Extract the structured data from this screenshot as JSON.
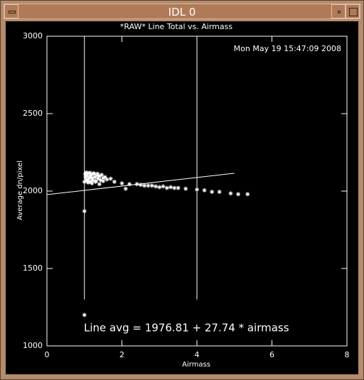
{
  "window": {
    "title": "IDL 0"
  },
  "chart_data": {
    "type": "scatter",
    "title": "*RAW* Line Total vs. Airmass",
    "timestamp": "Mon May 19 15:47:09 2008",
    "annotation": "Line avg = 1976.81 + 27.74 * airmass",
    "x_label": "Airmass",
    "y_label": "Average dn/pixel",
    "xlim": [
      0,
      8
    ],
    "xticks": [
      0,
      2,
      4,
      6,
      8
    ],
    "ylim": [
      1000,
      3000
    ],
    "yticks": [
      1000,
      1500,
      2000,
      2500,
      3000
    ],
    "color": "#ffffff",
    "x": [
      1.0,
      1.0,
      1.0,
      1.02,
      1.03,
      1.05,
      1.06,
      1.08,
      1.1,
      1.12,
      1.14,
      1.16,
      1.18,
      1.2,
      1.22,
      1.25,
      1.28,
      1.3,
      1.33,
      1.36,
      1.4,
      1.43,
      1.46,
      1.5,
      1.55,
      1.6,
      1.1,
      1.2,
      1.3,
      1.4,
      1.5,
      1.05,
      1.15,
      1.25,
      1.35,
      1.7,
      1.8,
      2.0,
      2.1,
      2.2,
      2.4,
      2.5,
      2.6,
      2.7,
      2.8,
      2.9,
      3.0,
      3.1,
      3.2,
      3.3,
      3.4,
      3.5,
      3.7,
      4.0,
      4.2,
      4.4,
      4.6,
      4.9,
      5.1,
      5.35
    ],
    "values": [
      1200,
      1870,
      2060,
      2110,
      2090,
      2075,
      2100,
      2065,
      2115,
      2080,
      2095,
      2060,
      2105,
      2085,
      2070,
      2110,
      2090,
      2065,
      2100,
      2080,
      2095,
      2070,
      2105,
      2085,
      2090,
      2075,
      2055,
      2050,
      2060,
      2045,
      2065,
      2120,
      2118,
      2115,
      2112,
      2080,
      2060,
      2050,
      2015,
      2045,
      2045,
      2040,
      2035,
      2035,
      2035,
      2030,
      2025,
      2030,
      2020,
      2025,
      2020,
      2020,
      2015,
      2010,
      2005,
      1995,
      1995,
      1985,
      1980,
      1980
    ],
    "fit": {
      "intercept": 1976.81,
      "slope": 27.74,
      "xrange": [
        0,
        5
      ]
    },
    "reference_lines": {
      "x": [
        1,
        4
      ],
      "y_from": 1300
    }
  }
}
